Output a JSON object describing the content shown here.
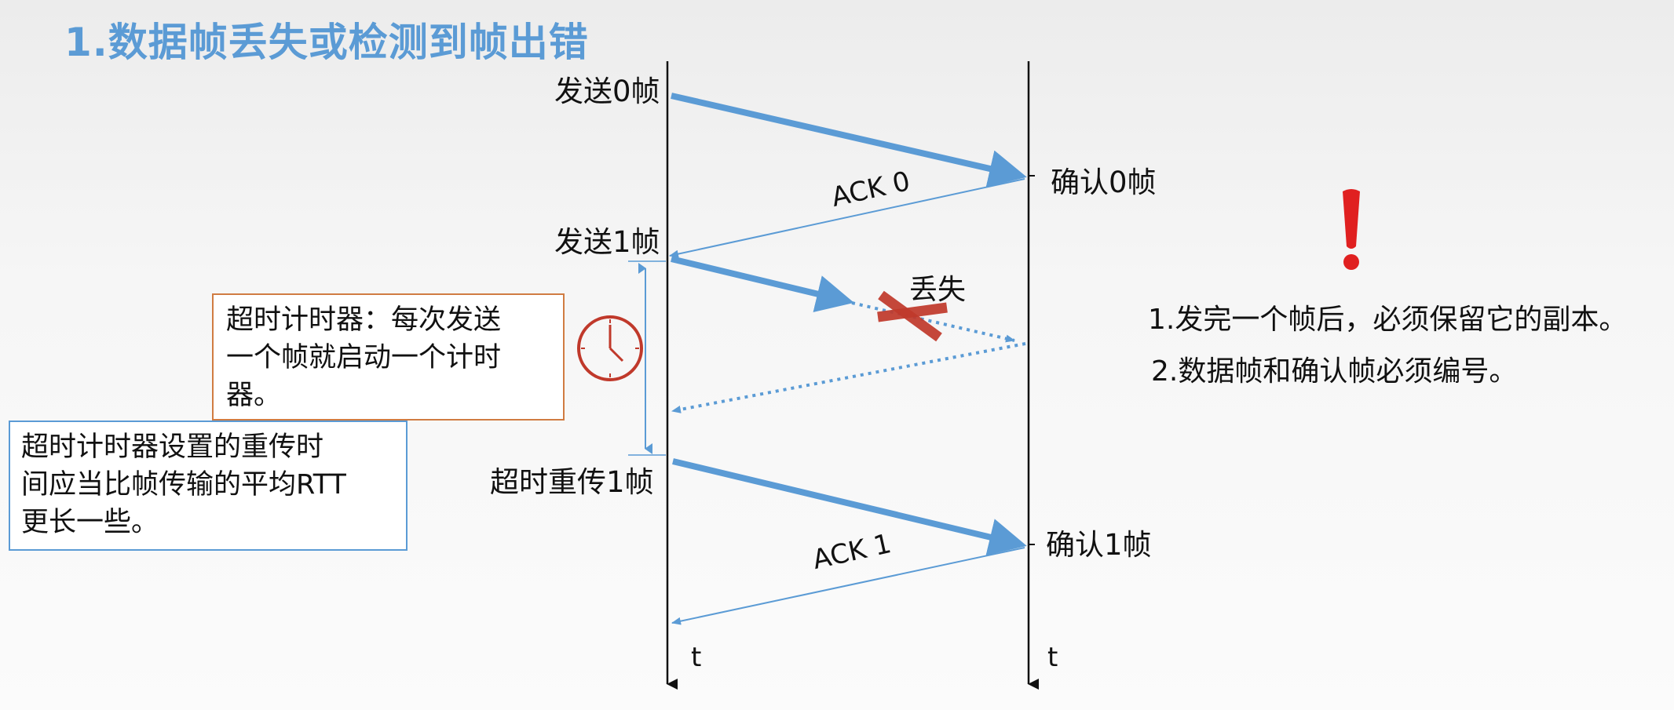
{
  "title": "1.数据帧丢失或检测到帧出错",
  "sender_labels": {
    "send0": "发送0帧",
    "send1": "发送1帧",
    "resend1": "超时重传1帧"
  },
  "receiver_labels": {
    "confirm0": "确认0帧",
    "confirm1": "确认1帧"
  },
  "ack_labels": {
    "ack0": "ACK 0",
    "ack1": "ACK 1"
  },
  "lost_label": "丢失",
  "time_axis": {
    "sender": "t",
    "receiver": "t"
  },
  "timer_box": {
    "line1": "超时计时器：每次发送",
    "line2": "一个帧就启动一个计时",
    "line3": "器。"
  },
  "rtt_box": {
    "line1": "超时计时器设置的重传时",
    "line2": "间应当比帧传输的平均RTT",
    "line3": "更长一些。"
  },
  "notes": {
    "note1": "1.发完一个帧后，必须保留它的副本。",
    "note2": "2.数据帧和确认帧必须编号。"
  },
  "colors": {
    "title": "#5b9bd5",
    "arrow": "#5b9bd5",
    "lost_cross": "#c0392b",
    "exclaim": "#e02020",
    "timer_border": "#d07c42",
    "rtt_border": "#5b9bd5",
    "clock": "#c0392b"
  },
  "icons": {
    "clock": "clock-icon",
    "exclamation": "exclamation-icon",
    "lost_cross": "cross-icon"
  }
}
